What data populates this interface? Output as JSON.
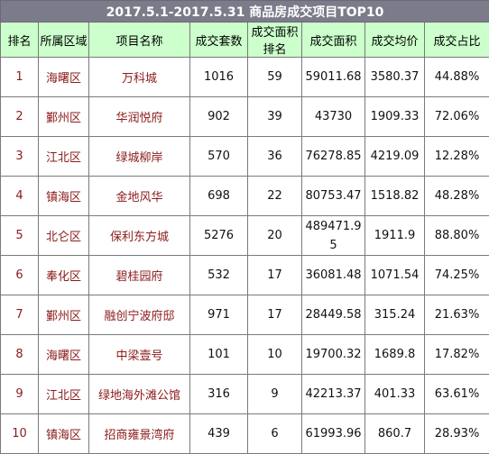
{
  "title": "2017.5.1-2017.5.31 商品房成交项目TOP10",
  "headers": [
    "排名",
    "所属区域",
    "项目名称",
    "成交套数",
    "成交面积排名",
    "成交面积",
    "成交均价",
    "成交占比"
  ],
  "rows": [
    {
      "rank": "1",
      "area": "海曙区",
      "name": "万科城",
      "units": "1016",
      "area_rank": "59",
      "size": "59011.68",
      "price": "3580.37",
      "ratio": "44.88%"
    },
    {
      "rank": "2",
      "area": "鄞州区",
      "name": "华润悦府",
      "units": "902",
      "area_rank": "39",
      "size": "43730",
      "price": "1909.33",
      "ratio": "72.06%"
    },
    {
      "rank": "3",
      "area": "江北区",
      "name": "绿城柳岸",
      "units": "570",
      "area_rank": "36",
      "size": "76278.85",
      "price": "4219.09",
      "ratio": "12.28%"
    },
    {
      "rank": "4",
      "area": "镇海区",
      "name": "金地风华",
      "units": "698",
      "area_rank": "22",
      "size": "80753.47",
      "price": "1518.82",
      "ratio": "48.28%"
    },
    {
      "rank": "5",
      "area": "北仑区",
      "name": "保利东方城",
      "units": "5276",
      "area_rank": "20",
      "size": "489471.95",
      "price": "1911.9",
      "ratio": "88.80%"
    },
    {
      "rank": "6",
      "area": "奉化区",
      "name": "碧桂园府",
      "units": "532",
      "area_rank": "17",
      "size": "36081.48",
      "price": "1071.54",
      "ratio": "74.25%"
    },
    {
      "rank": "7",
      "area": "鄞州区",
      "name": "融创宁波府邸",
      "units": "971",
      "area_rank": "17",
      "size": "28449.58",
      "price": "315.24",
      "ratio": "21.63%"
    },
    {
      "rank": "8",
      "area": "海曙区",
      "name": "中梁壹号",
      "units": "101",
      "area_rank": "10",
      "size": "19700.32",
      "price": "1689.8",
      "ratio": "17.82%"
    },
    {
      "rank": "9",
      "area": "江北区",
      "name": "绿地海外滩公馆",
      "units": "316",
      "area_rank": "9",
      "size": "42213.37",
      "price": "401.33",
      "ratio": "63.61%"
    },
    {
      "rank": "10",
      "area": "镇海区",
      "name": "招商雍景湾府",
      "units": "439",
      "area_rank": "6",
      "size": "61993.96",
      "price": "860.7",
      "ratio": "28.93%"
    }
  ]
}
